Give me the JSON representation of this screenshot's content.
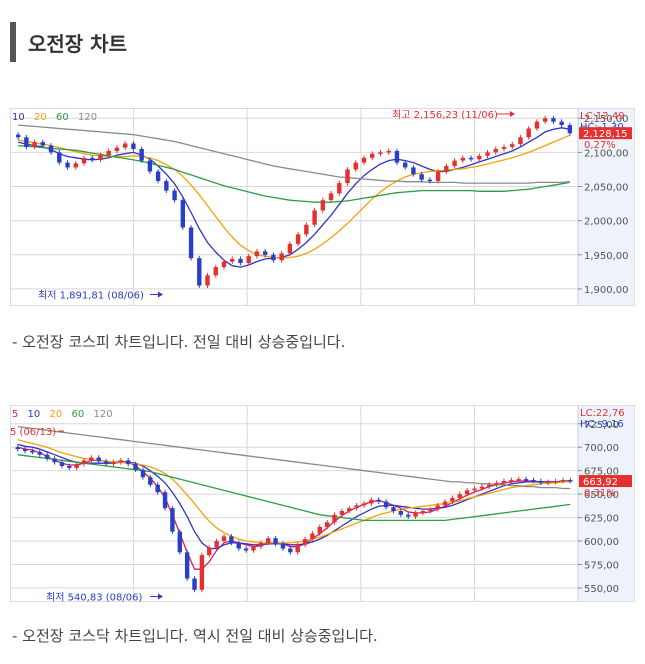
{
  "section": {
    "title": "오전장 차트"
  },
  "captions": [
    "- 오전장 코스피 차트입니다. 전일 대비 상승중입니다.",
    "- 오전장 코스닥 차트입니다. 역시 전일 대비 상승중입니다."
  ],
  "colors": {
    "up": "#e53030",
    "down": "#2a3ec8",
    "ma5": "#d81b60",
    "ma10": "#2e35c8",
    "ma20": "#f2a20c",
    "ma60": "#2e9c42",
    "ma120": "#8a8a8a",
    "axis_bg": "#eef3fb",
    "grid": "#d8d8d8",
    "price_tag": "#e53030"
  },
  "chart_data": [
    {
      "type": "candlestick",
      "legend": [
        "10",
        "20",
        "60",
        "120"
      ],
      "legend_colors": [
        "#2e35c8",
        "#f2a20c",
        "#2e9c42",
        "#8a8a8a"
      ],
      "ylim": [
        1875,
        2165
      ],
      "yticks": [
        "2,150,00",
        "2,100,00",
        "2,050,00",
        "2,000,00",
        "1,950,00",
        "1,900,00"
      ],
      "ytick_values": [
        2150,
        2100,
        2050,
        2000,
        1950,
        1900
      ],
      "lc": "LC:12,49",
      "hc": "HC:-1,30",
      "current_price": "2,128,15",
      "current_value": 2128.15,
      "change_pct": "0,27%",
      "high_label": "최고 2,156,23 (11/06)",
      "high_value": 2156.23,
      "low_label": "최저 1,891,81 (08/06)",
      "low_value": 1891.81,
      "close": [
        2122,
        2108,
        2115,
        2110,
        2100,
        2085,
        2078,
        2084,
        2092,
        2089,
        2096,
        2102,
        2107,
        2113,
        2105,
        2088,
        2072,
        2058,
        2044,
        2030,
        1990,
        1945,
        1905,
        1920,
        1932,
        1940,
        1944,
        1938,
        1948,
        1955,
        1950,
        1942,
        1952,
        1966,
        1980,
        1994,
        2015,
        2030,
        2040,
        2055,
        2075,
        2085,
        2092,
        2098,
        2100,
        2102,
        2085,
        2078,
        2068,
        2060,
        2058,
        2072,
        2080,
        2088,
        2092,
        2090,
        2095,
        2100,
        2105,
        2108,
        2112,
        2122,
        2135,
        2145,
        2150,
        2145,
        2140,
        2128
      ],
      "ma10": [
        2115,
        2112,
        2110,
        2108,
        2104,
        2098,
        2094,
        2092,
        2090,
        2089,
        2090,
        2092,
        2096,
        2098,
        2100,
        2096,
        2090,
        2080,
        2068,
        2054,
        2035,
        2012,
        1988,
        1968,
        1954,
        1942,
        1934,
        1932,
        1935,
        1940,
        1944,
        1945,
        1946,
        1950,
        1958,
        1968,
        1980,
        1994,
        2008,
        2024,
        2040,
        2054,
        2066,
        2075,
        2083,
        2088,
        2090,
        2088,
        2085,
        2080,
        2075,
        2072,
        2072,
        2075,
        2078,
        2082,
        2086,
        2090,
        2094,
        2098,
        2102,
        2108,
        2115,
        2122,
        2130,
        2134,
        2136,
        2134
      ],
      "ma20": [
        2118,
        2116,
        2114,
        2112,
        2110,
        2107,
        2104,
        2101,
        2098,
        2096,
        2095,
        2094,
        2094,
        2094,
        2095,
        2094,
        2092,
        2088,
        2082,
        2075,
        2065,
        2052,
        2038,
        2022,
        2006,
        1990,
        1976,
        1964,
        1956,
        1950,
        1948,
        1946,
        1945,
        1946,
        1948,
        1952,
        1958,
        1966,
        1975,
        1985,
        1996,
        2008,
        2020,
        2032,
        2042,
        2051,
        2058,
        2064,
        2068,
        2070,
        2072,
        2073,
        2074,
        2075,
        2076,
        2078,
        2080,
        2083,
        2086,
        2089,
        2092,
        2096,
        2100,
        2105,
        2110,
        2115,
        2120,
        2125
      ],
      "ma60": [
        2110,
        2109,
        2108,
        2107,
        2106,
        2105,
        2104,
        2103,
        2101,
        2099,
        2097,
        2095,
        2093,
        2091,
        2089,
        2087,
        2084,
        2081,
        2078,
        2075,
        2071,
        2067,
        2063,
        2059,
        2055,
        2051,
        2048,
        2045,
        2042,
        2039,
        2036,
        2034,
        2032,
        2030,
        2029,
        2028,
        2027,
        2027,
        2027,
        2028,
        2029,
        2031,
        2033,
        2035,
        2037,
        2039,
        2041,
        2042,
        2043,
        2044,
        2044,
        2044,
        2044,
        2044,
        2044,
        2044,
        2043,
        2043,
        2043,
        2043,
        2044,
        2045,
        2046,
        2048,
        2050,
        2052,
        2054,
        2056
      ],
      "ma120": [
        2140,
        2139,
        2138,
        2137,
        2136,
        2135,
        2134,
        2133,
        2132,
        2131,
        2130,
        2129,
        2128,
        2127,
        2126,
        2124,
        2122,
        2120,
        2118,
        2116,
        2113,
        2110,
        2107,
        2104,
        2101,
        2098,
        2095,
        2092,
        2089,
        2086,
        2083,
        2080,
        2078,
        2076,
        2074,
        2072,
        2070,
        2068,
        2066,
        2064,
        2063,
        2062,
        2061,
        2060,
        2059,
        2058,
        2058,
        2057,
        2057,
        2057,
        2056,
        2056,
        2056,
        2056,
        2055,
        2055,
        2055,
        2055,
        2055,
        2055,
        2055,
        2055,
        2055,
        2056,
        2056,
        2056,
        2056,
        2057
      ]
    },
    {
      "type": "candlestick",
      "legend": [
        "5",
        "10",
        "20",
        "60",
        "120"
      ],
      "legend_colors": [
        "#d81b60",
        "#2e35c8",
        "#f2a20c",
        "#2e9c42",
        "#8a8a8a"
      ],
      "ylim": [
        535,
        745
      ],
      "yticks": [
        "725,00",
        "700,00",
        "675,00",
        "650,00",
        "625,00",
        "600,00",
        "575,00",
        "550,00"
      ],
      "ytick_values": [
        725,
        700,
        675,
        650,
        625,
        600,
        575,
        550
      ],
      "lc": "LC:22,76",
      "hc": "HC:-9,16",
      "current_price": "663,92",
      "current_value": 663.92,
      "change_pct": "0,31%",
      "high_label": "5 (06/13)",
      "high_value": 727,
      "low_label": "최저 540,83 (08/06)",
      "low_value": 540.83,
      "close": [
        698,
        696,
        695,
        692,
        688,
        684,
        680,
        678,
        682,
        686,
        689,
        685,
        682,
        684,
        686,
        682,
        676,
        668,
        660,
        652,
        635,
        610,
        588,
        560,
        548,
        585,
        593,
        600,
        605,
        598,
        592,
        590,
        594,
        598,
        603,
        597,
        592,
        588,
        596,
        602,
        608,
        615,
        620,
        628,
        632,
        635,
        638,
        640,
        644,
        642,
        636,
        632,
        628,
        626,
        630,
        632,
        634,
        638,
        642,
        646,
        650,
        654,
        656,
        658,
        660,
        662,
        664,
        665,
        666,
        665,
        664,
        662,
        663,
        664,
        665,
        664
      ],
      "ma5": [
        700,
        698,
        697,
        694,
        690,
        686,
        683,
        681,
        681,
        683,
        686,
        686,
        685,
        684,
        685,
        684,
        680,
        674,
        667,
        658,
        646,
        628,
        608,
        588,
        570,
        570,
        578,
        590,
        598,
        600,
        598,
        596,
        594,
        595,
        598,
        598,
        597,
        594,
        594,
        597,
        602,
        608,
        614,
        621,
        627,
        632,
        636,
        639,
        642,
        643,
        641,
        638,
        635,
        631,
        630,
        630,
        631,
        634,
        637,
        641,
        645,
        649,
        652,
        655,
        658,
        660,
        662,
        663,
        664,
        664,
        664,
        663,
        663,
        663,
        664,
        664
      ],
      "ma10": [
        703,
        701,
        700,
        698,
        695,
        692,
        689,
        686,
        684,
        683,
        683,
        683,
        683,
        683,
        684,
        684,
        683,
        680,
        675,
        669,
        662,
        652,
        640,
        626,
        610,
        598,
        592,
        592,
        596,
        598,
        598,
        597,
        596,
        596,
        597,
        597,
        597,
        596,
        596,
        597,
        599,
        602,
        606,
        611,
        616,
        621,
        626,
        630,
        634,
        637,
        638,
        638,
        637,
        636,
        635,
        634,
        634,
        635,
        636,
        638,
        641,
        644,
        647,
        650,
        653,
        656,
        659,
        661,
        662,
        663,
        663,
        663,
        663,
        663,
        664,
        664
      ],
      "ma20": [
        708,
        706,
        704,
        702,
        700,
        697,
        694,
        692,
        690,
        688,
        687,
        686,
        685,
        684,
        684,
        683,
        682,
        681,
        679,
        676,
        672,
        666,
        658,
        649,
        640,
        630,
        621,
        614,
        609,
        605,
        602,
        600,
        599,
        598,
        598,
        598,
        598,
        598,
        599,
        600,
        602,
        604,
        607,
        610,
        613,
        616,
        619,
        622,
        625,
        628,
        630,
        632,
        634,
        635,
        636,
        637,
        638,
        639,
        640,
        641,
        643,
        645,
        647,
        649,
        651,
        653,
        655,
        657,
        658,
        659,
        660,
        661,
        662,
        662,
        663,
        663
      ],
      "ma60": [
        692,
        691,
        690,
        689,
        688,
        687,
        686,
        685,
        684,
        683,
        682,
        681,
        680,
        679,
        678,
        677,
        676,
        675,
        674,
        672,
        670,
        668,
        666,
        664,
        662,
        660,
        658,
        656,
        654,
        652,
        650,
        648,
        646,
        644,
        642,
        640,
        638,
        636,
        634,
        632,
        630,
        628,
        627,
        626,
        625,
        624,
        623,
        622,
        622,
        622,
        622,
        622,
        622,
        622,
        622,
        622,
        622,
        622,
        622,
        623,
        624,
        625,
        626,
        627,
        628,
        629,
        630,
        631,
        632,
        633,
        634,
        635,
        636,
        637,
        638,
        639
      ],
      "ma120": [
        722,
        721,
        720,
        719,
        718,
        717,
        716,
        715,
        714,
        713,
        712,
        711,
        710,
        709,
        708,
        707,
        706,
        705,
        704,
        703,
        702,
        701,
        700,
        699,
        698,
        697,
        696,
        695,
        694,
        693,
        692,
        691,
        690,
        689,
        688,
        687,
        686,
        685,
        684,
        683,
        682,
        681,
        680,
        679,
        678,
        677,
        676,
        675,
        674,
        673,
        672,
        671,
        670,
        669,
        668,
        667,
        666,
        665,
        664,
        663,
        663,
        662,
        662,
        661,
        661,
        660,
        660,
        659,
        659,
        658,
        658,
        657,
        657,
        657,
        656,
        656
      ]
    }
  ]
}
